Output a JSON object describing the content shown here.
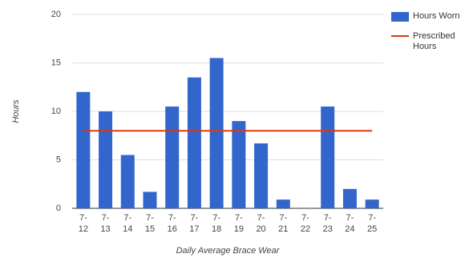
{
  "chart_data": {
    "type": "bar",
    "categories": [
      "7-12",
      "7-13",
      "7-14",
      "7-15",
      "7-16",
      "7-17",
      "7-18",
      "7-19",
      "7-20",
      "7-21",
      "7-22",
      "7-23",
      "7-24",
      "7-25"
    ],
    "series": [
      {
        "name": "Hours Worn",
        "color": "#3366cc",
        "values": [
          12,
          10,
          5.5,
          1.7,
          10.5,
          13.5,
          15.5,
          9,
          6.7,
          0.9,
          0,
          10.5,
          2,
          0.9
        ]
      },
      {
        "name": "Prescribed Hours",
        "color": "#dc3912",
        "type": "line",
        "values": [
          8,
          8,
          8,
          8,
          8,
          8,
          8,
          8,
          8,
          8,
          8,
          8,
          8,
          8
        ]
      }
    ],
    "x_label": "Daily Average Brace Wear",
    "y_label": "Hours",
    "ylim": [
      0,
      20
    ],
    "yticks": [
      0,
      5,
      10,
      15,
      20
    ],
    "grid": true
  }
}
